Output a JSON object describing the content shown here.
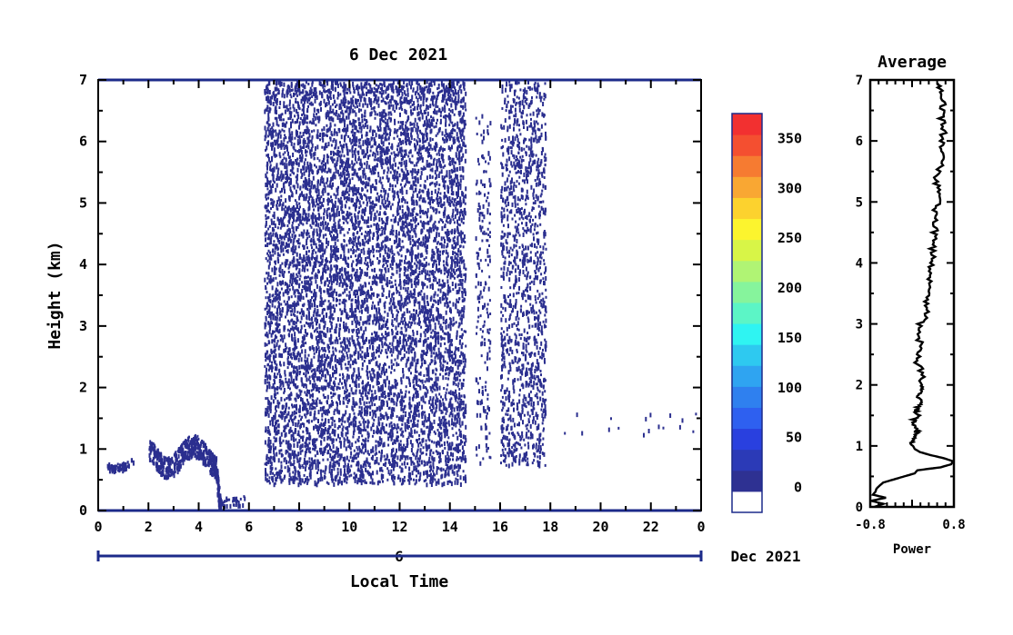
{
  "chart_data": [
    {
      "type": "heatmap",
      "title": "6 Dec 2021",
      "xlabel": "Local Time",
      "ylabel": "Height (km)",
      "date_axis_day": "6",
      "date_axis_label": "Dec 2021",
      "xlim": [
        0,
        24
      ],
      "ylim": [
        0,
        7
      ],
      "x_ticks": [
        "0",
        "2",
        "4",
        "6",
        "8",
        "10",
        "12",
        "14",
        "16",
        "18",
        "20",
        "22",
        "0"
      ],
      "y_ticks": [
        "0",
        "1",
        "2",
        "3",
        "4",
        "5",
        "6",
        "7"
      ],
      "grid": false,
      "echo_color": "#2b2f8f",
      "layers": [
        {
          "name": "low layer",
          "hours": [
            0.3,
            1.4
          ],
          "height_km": [
            0.65,
            0.9
          ]
        },
        {
          "name": "low layer",
          "hours": [
            2.0,
            4.7
          ],
          "height_km": [
            0.55,
            1.25
          ]
        },
        {
          "name": "descending streak",
          "hours": [
            4.6,
            4.9
          ],
          "height_km": [
            0.05,
            0.75
          ]
        },
        {
          "name": "surface echo",
          "hours": [
            4.8,
            5.8
          ],
          "height_km": [
            0.1,
            0.25
          ]
        },
        {
          "name": "dense echoes",
          "hours": [
            6.6,
            14.6
          ],
          "height_km": [
            0.45,
            7.0
          ]
        },
        {
          "name": "sparse echoes",
          "hours": [
            15.0,
            15.6
          ],
          "height_km": [
            0.8,
            6.5
          ]
        },
        {
          "name": "echoes",
          "hours": [
            16.0,
            17.8
          ],
          "height_km": [
            0.75,
            7.0
          ]
        },
        {
          "name": "scattered low echoes",
          "hours": [
            18.4,
            24.0
          ],
          "height_km": [
            1.2,
            1.6
          ]
        }
      ]
    },
    {
      "type": "colorbar",
      "ticks": [
        "0",
        "50",
        "100",
        "150",
        "200",
        "250",
        "300",
        "350"
      ],
      "range": [
        -25,
        375
      ],
      "colors": [
        "#ffffff",
        "#2e3192",
        "#2b3ab7",
        "#2940df",
        "#2e60f0",
        "#2f80ef",
        "#2fa4f1",
        "#2ec9f0",
        "#2ff4f2",
        "#5cf5c6",
        "#86f49c",
        "#b0f474",
        "#d8f547",
        "#fcf42e",
        "#fcd22e",
        "#f9a733",
        "#f67b31",
        "#f44f30",
        "#f23030"
      ]
    },
    {
      "type": "line",
      "title": "Average",
      "xlabel": "Power",
      "xlim": [
        -0.8,
        0.8
      ],
      "ylim": [
        0,
        7
      ],
      "x_ticks": [
        "-0.8",
        "0.8"
      ],
      "y_ticks": [
        "0",
        "1",
        "2",
        "3",
        "4",
        "5",
        "6",
        "7"
      ],
      "series": [
        {
          "y": [
            0.0,
            0.05,
            0.1,
            0.15,
            0.2,
            0.25,
            0.3,
            0.35,
            0.4,
            0.45,
            0.5,
            0.55,
            0.6,
            0.65,
            0.7,
            0.75,
            0.8,
            0.85,
            0.9,
            0.95,
            1.0,
            1.1,
            1.2,
            1.3,
            1.4,
            1.5,
            1.6,
            1.7,
            1.8,
            1.9,
            2.0,
            2.2,
            2.4,
            2.6,
            2.8,
            3.0,
            3.2,
            3.4,
            3.6,
            3.8,
            4.0,
            4.2,
            4.4,
            4.6,
            4.8,
            5.0,
            5.2,
            5.4,
            5.6,
            5.8,
            6.0,
            6.2,
            6.4,
            6.6,
            6.8,
            6.95
          ],
          "x": [
            -0.72,
            -0.55,
            -0.78,
            -0.5,
            -0.75,
            -0.7,
            -0.68,
            -0.62,
            -0.55,
            -0.35,
            -0.15,
            0.05,
            0.1,
            0.55,
            0.75,
            0.78,
            0.6,
            0.35,
            0.15,
            0.05,
            0.02,
            0.0,
            0.06,
            0.1,
            0.02,
            0.12,
            0.08,
            0.2,
            0.1,
            0.22,
            0.15,
            0.2,
            0.08,
            0.18,
            0.12,
            0.15,
            0.32,
            0.28,
            0.35,
            0.3,
            0.4,
            0.38,
            0.42,
            0.45,
            0.44,
            0.48,
            0.5,
            0.45,
            0.55,
            0.6,
            0.58,
            0.62,
            0.55,
            0.6,
            0.58,
            0.5
          ]
        }
      ]
    }
  ]
}
